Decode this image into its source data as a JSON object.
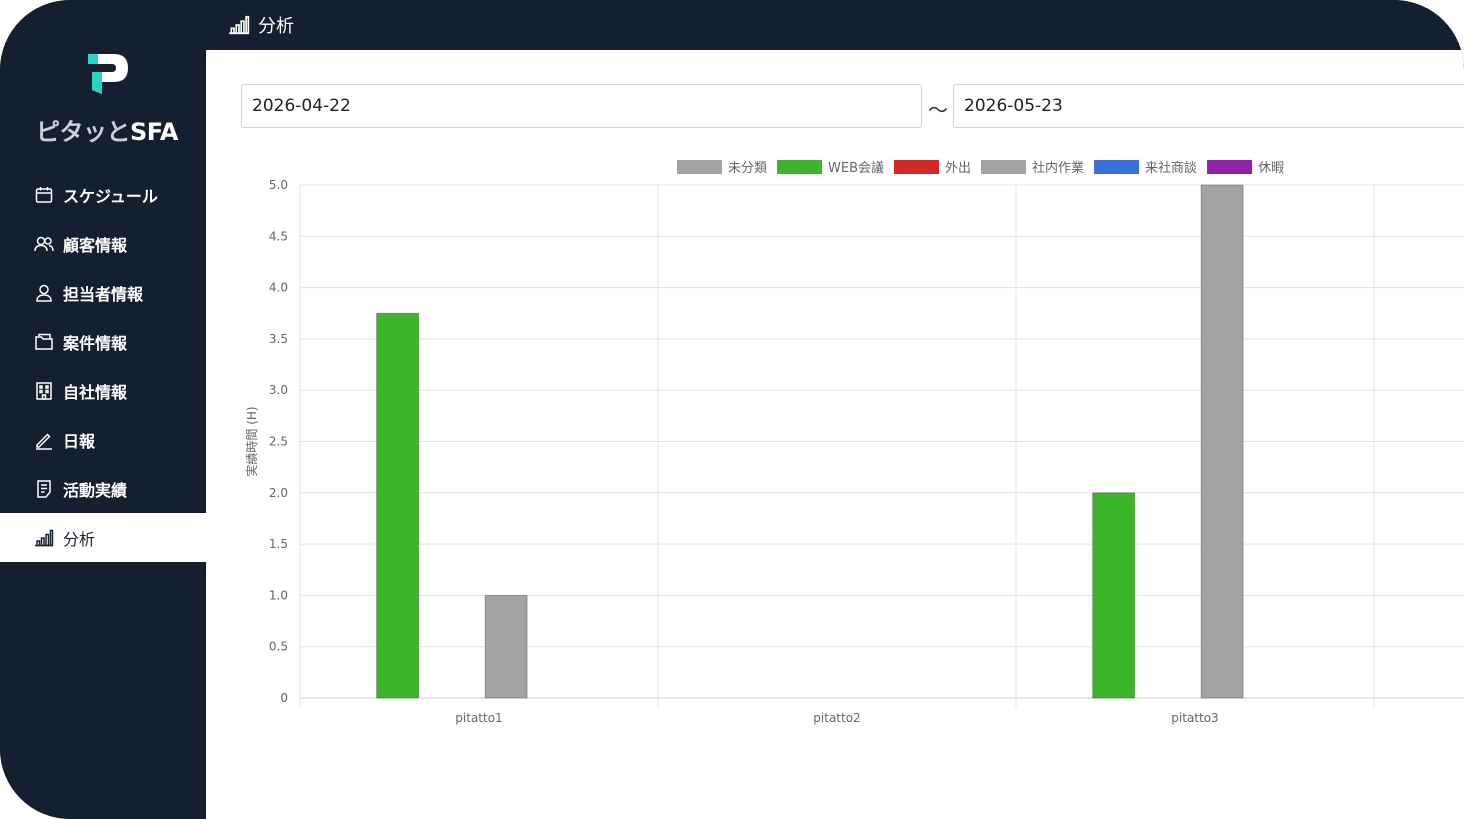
{
  "app": {
    "logo_text": "ピタッと",
    "logo_text_sfa": "SFA"
  },
  "header": {
    "title": "分析",
    "icon": "bar-chart-icon"
  },
  "sidebar": {
    "items": [
      {
        "label": "スケジュール",
        "icon": "calendar-icon",
        "name": "schedule"
      },
      {
        "label": "顧客情報",
        "icon": "users-icon",
        "name": "customer-info"
      },
      {
        "label": "担当者情報",
        "icon": "user-icon",
        "name": "contact-info"
      },
      {
        "label": "案件情報",
        "icon": "folder-icon",
        "name": "deal-info"
      },
      {
        "label": "自社情報",
        "icon": "building-icon",
        "name": "company-info"
      },
      {
        "label": "日報",
        "icon": "pen-icon",
        "name": "daily-report"
      },
      {
        "label": "活動実績",
        "icon": "document-icon",
        "name": "activity-results"
      },
      {
        "label": "分析",
        "icon": "bar-chart-icon",
        "name": "analysis",
        "active": true
      }
    ]
  },
  "filter": {
    "date_from": "2026-04-22",
    "separator": "～",
    "date_to": "2026-05-23"
  },
  "chart_data": {
    "type": "bar",
    "title": "",
    "xlabel": "",
    "ylabel": "実績時間 (H)",
    "ylim": [
      0,
      5
    ],
    "yticks": [
      "5.0",
      "4.5",
      "4.0",
      "3.5",
      "3.0",
      "2.5",
      "2.0",
      "1.5",
      "1.0",
      "0.5",
      "0"
    ],
    "categories": [
      "pitatto1",
      "pitatto2",
      "pitatto3"
    ],
    "legend_position": "top",
    "grid": true,
    "series": [
      {
        "name": "未分類",
        "color": "#a3a3a3",
        "values": [
          0,
          0,
          0
        ]
      },
      {
        "name": "WEB会議",
        "color": "#3db52a",
        "values": [
          3.75,
          0,
          2.0
        ]
      },
      {
        "name": "外出",
        "color": "#d12828",
        "values": [
          0,
          0,
          0
        ]
      },
      {
        "name": "社内作業",
        "color": "#a3a3a3",
        "values": [
          1.0,
          0,
          5.0
        ]
      },
      {
        "name": "来社商談",
        "color": "#3a6fd8",
        "values": [
          0,
          0,
          0
        ]
      },
      {
        "name": "休暇",
        "color": "#8e24aa",
        "values": [
          0,
          0,
          0
        ]
      }
    ]
  }
}
